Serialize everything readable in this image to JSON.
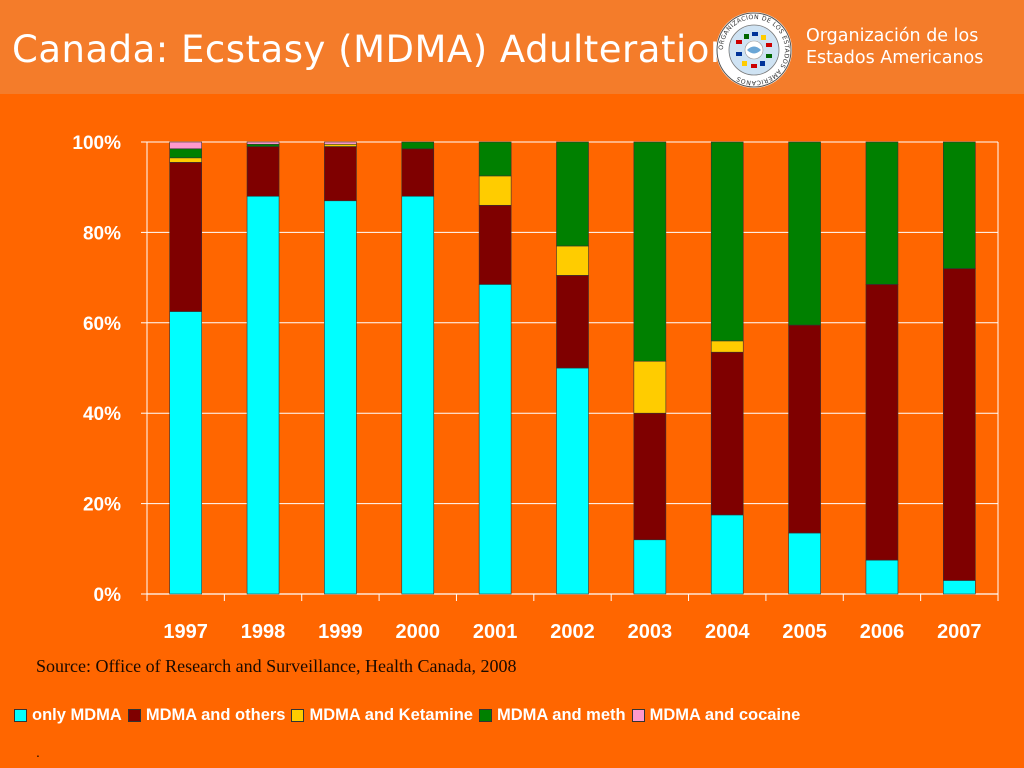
{
  "slide": {
    "title": "Canada: Ecstasy (MDMA) Adulteration",
    "org_line1": "Organización de los",
    "org_line2": "Estados Americanos",
    "seal_text_top": "ORGANIZACION DE LOS ESTADOS AMERICANOS",
    "source": "Source: Office of Research and Surveillance,  Health Canada, 2008",
    "footnote": ".",
    "header_color": "#f47c2a",
    "background_color": "#ff6600"
  },
  "chart_data": {
    "type": "bar",
    "stacked": true,
    "percent": true,
    "categories": [
      "1997",
      "1998",
      "1999",
      "2000",
      "2001",
      "2002",
      "2003",
      "2004",
      "2005",
      "2006",
      "2007"
    ],
    "series": [
      {
        "name": "only MDMA",
        "color": "#00ffff",
        "values": [
          62.5,
          88,
          87,
          88,
          68.5,
          50,
          12,
          17.5,
          13.5,
          7.5,
          3
        ]
      },
      {
        "name": "MDMA and others",
        "color": "#7f0000",
        "values": [
          33,
          11,
          12,
          10.5,
          17.5,
          20.5,
          28,
          36,
          46,
          61,
          69
        ]
      },
      {
        "name": "MDMA and Ketamine",
        "color": "#ffcc00",
        "values": [
          1,
          0,
          0.5,
          0,
          6.5,
          6.5,
          11.5,
          2.5,
          0,
          0,
          0
        ]
      },
      {
        "name": "MDMA and meth",
        "color": "#008000",
        "values": [
          2,
          0.5,
          0,
          1.5,
          7.5,
          23,
          48.5,
          44,
          40.5,
          31.5,
          28
        ]
      },
      {
        "name": "MDMA and cocaine",
        "color": "#ff99cc",
        "values": [
          1.5,
          0.5,
          0.5,
          0,
          0,
          0,
          0,
          0,
          0,
          0,
          0
        ]
      }
    ],
    "ylim": [
      0,
      100
    ],
    "yticks": [
      "0%",
      "20%",
      "40%",
      "60%",
      "80%",
      "100%"
    ],
    "grid": true,
    "legend": "bottom",
    "xlabel": "",
    "ylabel": ""
  }
}
